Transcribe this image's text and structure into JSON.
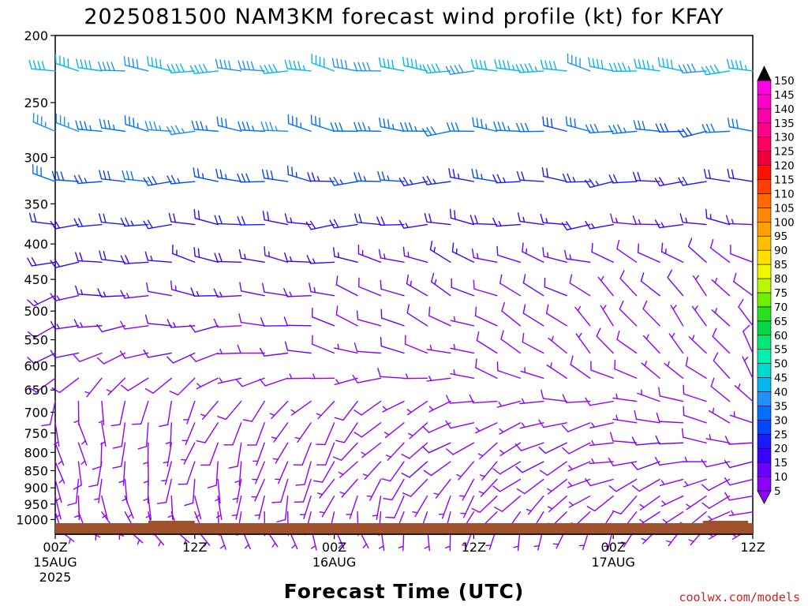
{
  "chart_data": {
    "type": "wind-barb-profile",
    "title": "2025081500 NAM3KM forecast wind profile (kt) for KFAY",
    "xlabel": "Forecast Time (UTC)",
    "ylabel": "",
    "credit": "coolwx.com/models",
    "y_axis": {
      "scale": "log-pressure",
      "range": [
        1050,
        200
      ],
      "ticks": [
        200,
        250,
        300,
        350,
        400,
        450,
        500,
        550,
        600,
        650,
        700,
        750,
        800,
        850,
        900,
        950,
        1000
      ]
    },
    "x_axis": {
      "range_hours": [
        0,
        60
      ],
      "ticks": [
        {
          "hour": 0,
          "label": "00Z",
          "sub1": "15AUG",
          "sub2": "2025"
        },
        {
          "hour": 12,
          "label": "12Z",
          "sub1": "",
          "sub2": ""
        },
        {
          "hour": 24,
          "label": "00Z",
          "sub1": "16AUG",
          "sub2": ""
        },
        {
          "hour": 36,
          "label": "12Z",
          "sub1": "",
          "sub2": ""
        },
        {
          "hour": 48,
          "label": "00Z",
          "sub1": "17AUG",
          "sub2": ""
        },
        {
          "hour": 60,
          "label": "12Z",
          "sub1": "",
          "sub2": ""
        }
      ]
    },
    "colorbar": {
      "labels": [
        5,
        10,
        15,
        20,
        25,
        30,
        35,
        40,
        45,
        50,
        55,
        60,
        65,
        70,
        75,
        80,
        85,
        90,
        95,
        100,
        105,
        110,
        115,
        120,
        125,
        130,
        135,
        140,
        145,
        150
      ],
      "colors": [
        "#8e00ff",
        "#6a00ff",
        "#3c00ff",
        "#1a1aff",
        "#0047ff",
        "#0070ff",
        "#1e90ff",
        "#00b8f0",
        "#00d8d0",
        "#00f0b0",
        "#00e87a",
        "#00d84a",
        "#28e020",
        "#6cf000",
        "#b8f800",
        "#f0f800",
        "#ffe000",
        "#ffc000",
        "#ffa000",
        "#ff8800",
        "#ff6a00",
        "#ff4000",
        "#ff1000",
        "#f0003a",
        "#ff0060",
        "#ff0088",
        "#ff00a8",
        "#ff00c8",
        "#ff00e8"
      ]
    },
    "levels": [
      225,
      275,
      325,
      375,
      425,
      475,
      525,
      575,
      625,
      675,
      725,
      775,
      825,
      875,
      925,
      975,
      1025
    ],
    "times_hours": [
      0,
      2,
      4,
      6,
      8,
      10,
      12,
      14,
      16,
      18,
      20,
      22,
      24,
      26,
      28,
      30,
      32,
      34,
      36,
      38,
      40,
      42,
      44,
      46,
      48,
      50,
      52,
      54,
      56,
      58,
      60
    ],
    "wind_regimes": [
      {
        "level": 225,
        "dir": [
          275,
          275
        ],
        "speed": [
          40,
          42
        ]
      },
      {
        "level": 275,
        "dir": [
          280,
          270
        ],
        "speed": [
          35,
          30
        ]
      },
      {
        "level": 325,
        "dir": [
          275,
          268
        ],
        "speed": [
          30,
          20
        ]
      },
      {
        "level": 375,
        "dir": [
          272,
          270
        ],
        "speed": [
          22,
          15
        ]
      },
      {
        "level": 425,
        "dir": [
          270,
          300
        ],
        "speed": [
          20,
          10
        ]
      },
      {
        "level": 475,
        "dir": [
          260,
          320
        ],
        "speed": [
          15,
          8
        ]
      },
      {
        "level": 525,
        "dir": [
          250,
          330
        ],
        "speed": [
          12,
          7
        ]
      },
      {
        "level": 575,
        "dir": [
          240,
          330
        ],
        "speed": [
          10,
          7
        ]
      },
      {
        "level": 625,
        "dir": [
          220,
          320
        ],
        "speed": [
          8,
          7
        ]
      },
      {
        "level": 675,
        "dir": [
          180,
          300
        ],
        "speed": [
          7,
          8
        ]
      },
      {
        "level": 725,
        "dir": [
          170,
          290
        ],
        "speed": [
          7,
          8
        ]
      },
      {
        "level": 775,
        "dir": [
          170,
          280
        ],
        "speed": [
          7,
          9
        ]
      },
      {
        "level": 825,
        "dir": [
          170,
          270
        ],
        "speed": [
          7,
          9
        ]
      },
      {
        "level": 875,
        "dir": [
          170,
          260
        ],
        "speed": [
          6,
          8
        ]
      },
      {
        "level": 925,
        "dir": [
          160,
          250
        ],
        "speed": [
          5,
          7
        ]
      },
      {
        "level": 975,
        "dir": [
          150,
          245
        ],
        "speed": [
          5,
          6
        ]
      },
      {
        "level": 1025,
        "dir": [
          120,
          230
        ],
        "speed": [
          4,
          4
        ]
      }
    ]
  },
  "colors": {
    "ground": "#a0522d",
    "axis": "#000000"
  }
}
